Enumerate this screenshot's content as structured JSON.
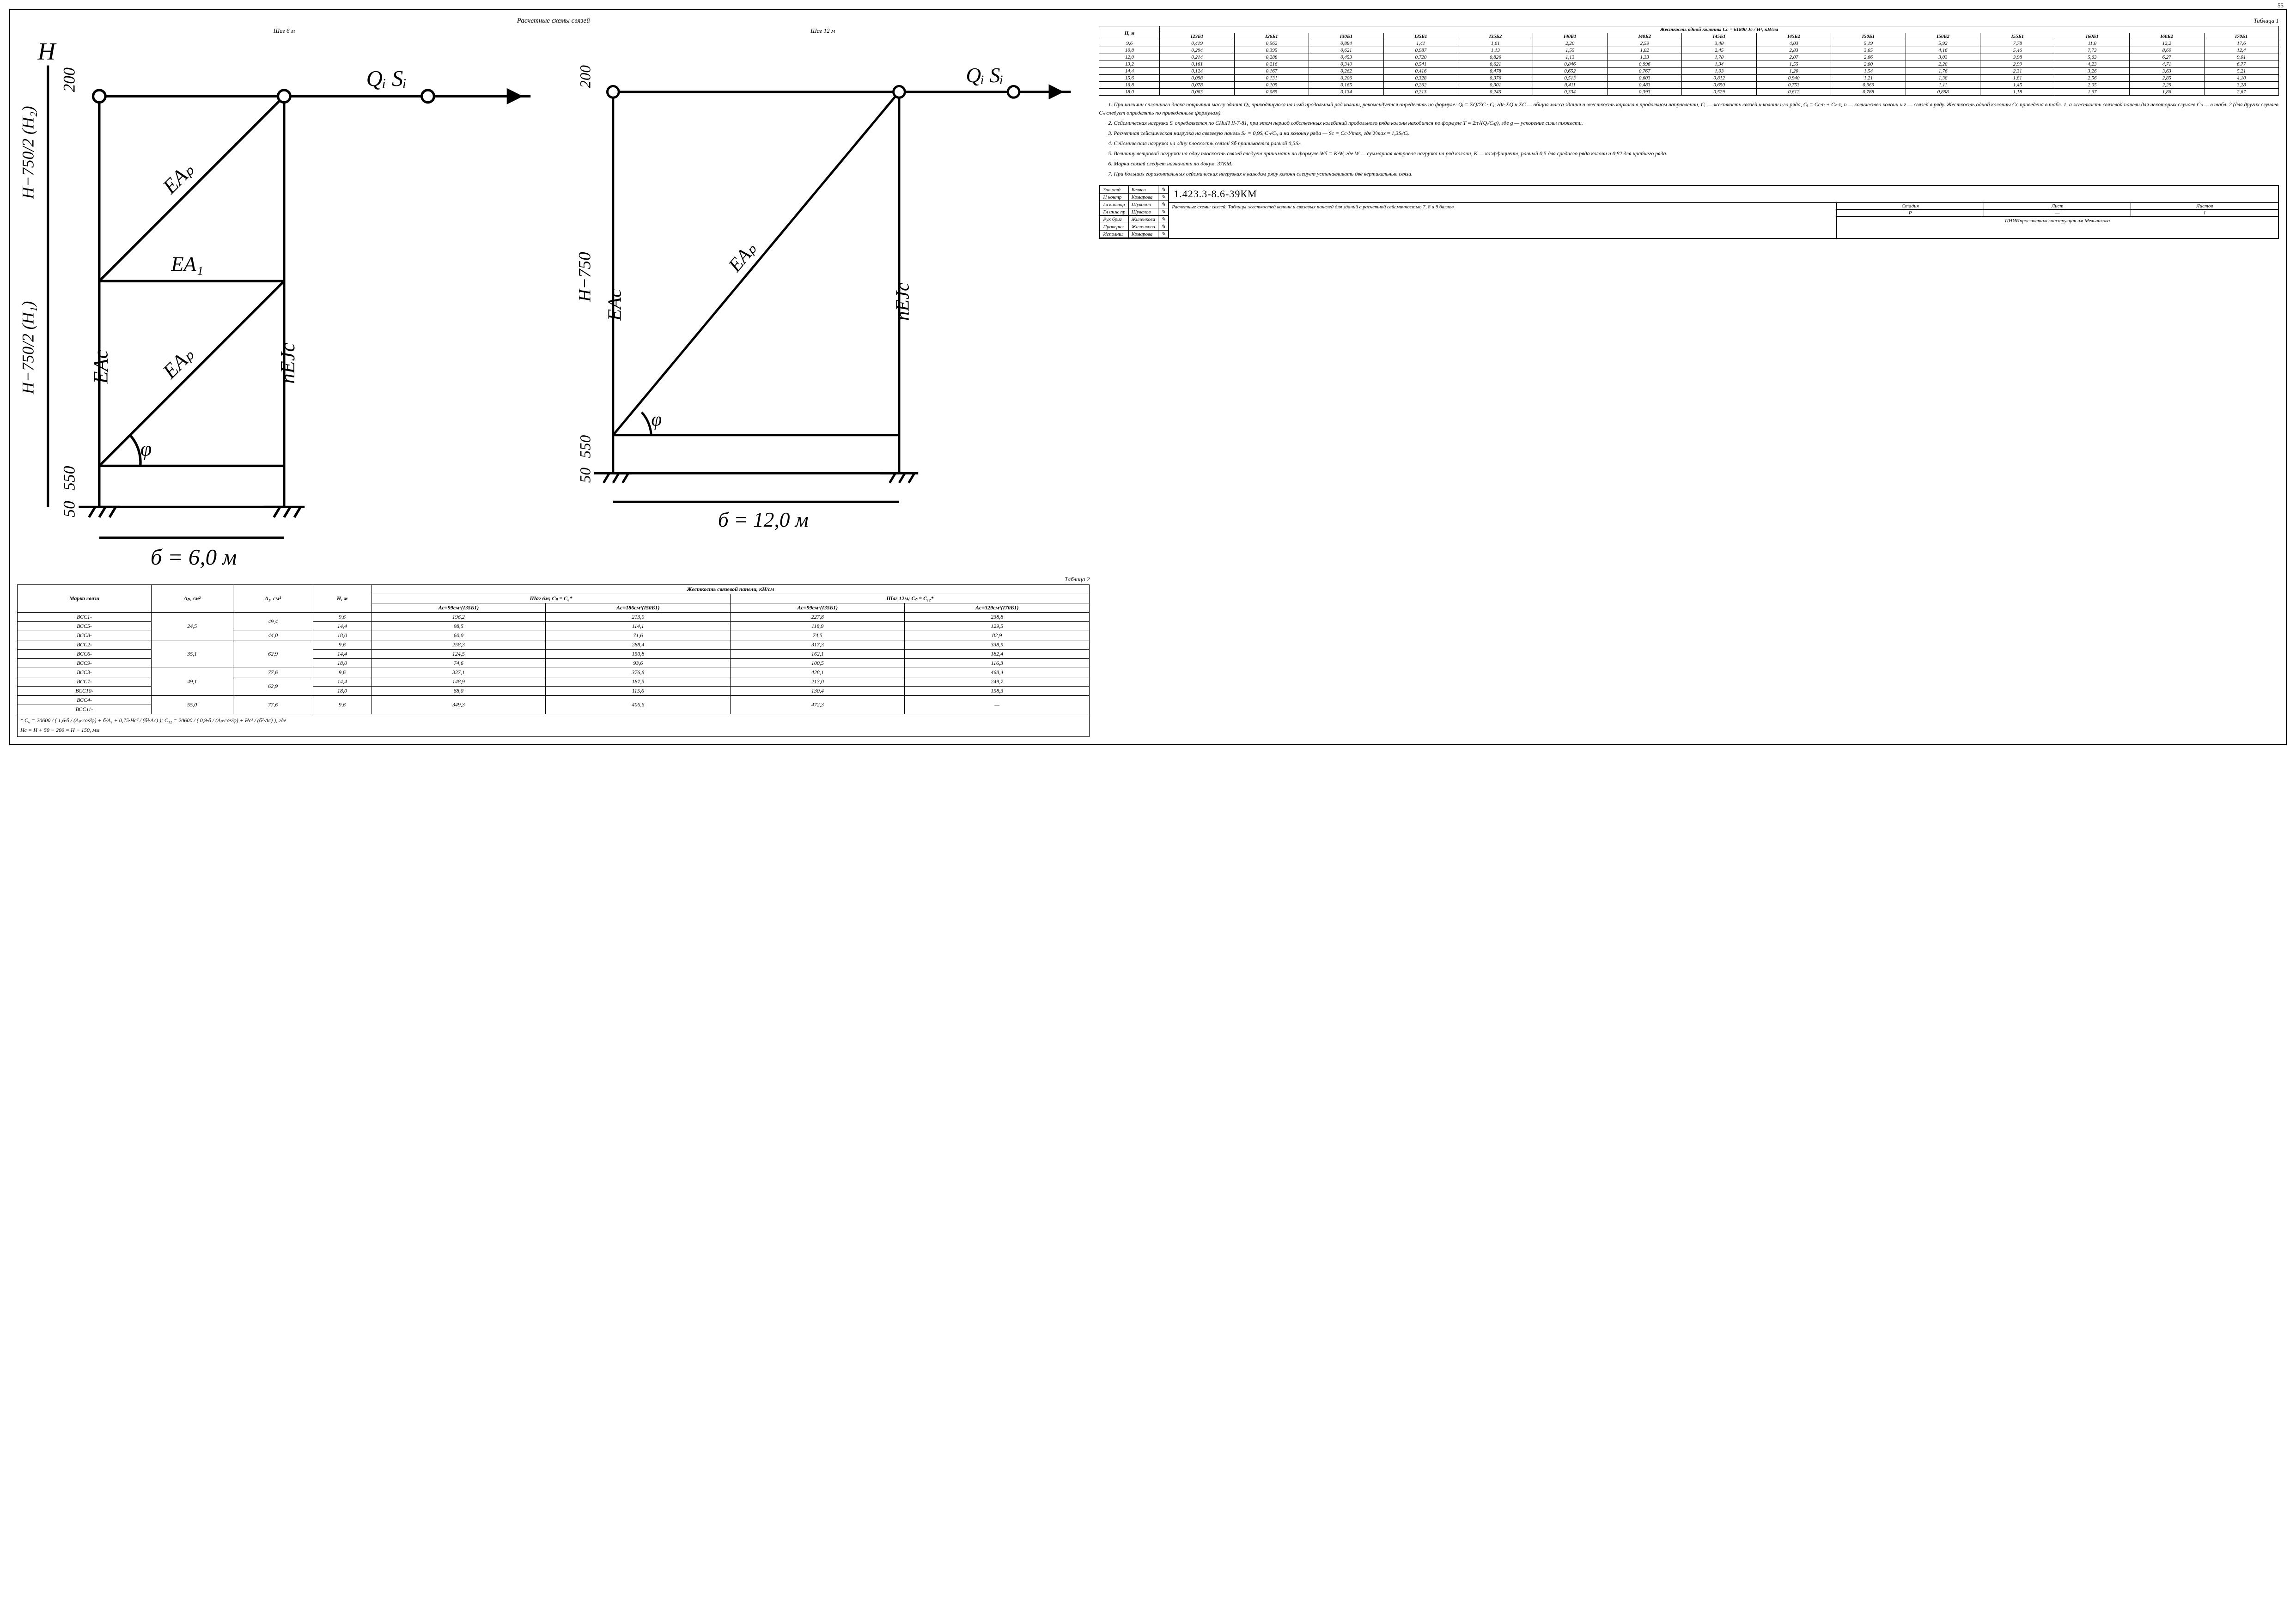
{
  "page_number": "55",
  "diagram": {
    "main_title": "Расчетные схемы связей",
    "sub_left": "Шаг 6 м",
    "sub_right": "Шаг 12 м",
    "labels": {
      "H": "H",
      "Qi": "Qᵢ",
      "Si": "Sᵢ",
      "EAp": "EAₚ",
      "EA1": "EA₁",
      "EAc": "EAc",
      "nEJc": "nEJc",
      "phi": "φ",
      "dim200": "200",
      "dim550": "550",
      "dim50": "50",
      "Hm750_2_H2": "H−750/2 (H₂)",
      "Hm750_2_H1": "H−750/2 (H₁)",
      "Hm750": "H−750",
      "b6": "б = 6,0 м",
      "b12": "б = 12,0 м"
    }
  },
  "table1": {
    "title": "Таблица 1",
    "header_main": "Жесткость одной колонны Cc = 61800 Jc / H³, кН/см",
    "row_header": "H, м",
    "columns": [
      "I23Б1",
      "I26Б1",
      "I30Б1",
      "I35Б1",
      "I35Б2",
      "I40Б1",
      "I40Б2",
      "I45Б1",
      "I45Б2",
      "I50Б1",
      "I50Б2",
      "I55Б1",
      "I60Б1",
      "I60Б2",
      "I70Б1"
    ],
    "rows": [
      {
        "h": "9,6",
        "v": [
          "0,419",
          "0,562",
          "0,884",
          "1,41",
          "1,61",
          "2,20",
          "2,59",
          "3,48",
          "4,03",
          "5,19",
          "5,92",
          "7,78",
          "11,0",
          "12,2",
          "17,6"
        ]
      },
      {
        "h": "10,8",
        "v": [
          "0,294",
          "0,395",
          "0,621",
          "0,987",
          "1,13",
          "1,55",
          "1,82",
          "2,45",
          "2,83",
          "3,65",
          "4,16",
          "5,46",
          "7,73",
          "8,60",
          "12,4"
        ]
      },
      {
        "h": "12,0",
        "v": [
          "0,214",
          "0,288",
          "0,453",
          "0,720",
          "0,826",
          "1,13",
          "1,33",
          "1,78",
          "2,07",
          "2,66",
          "3,03",
          "3,98",
          "5,63",
          "6,27",
          "9,01"
        ]
      },
      {
        "h": "13,2",
        "v": [
          "0,161",
          "0,216",
          "0,340",
          "0,541",
          "0,621",
          "0,846",
          "0,996",
          "1,34",
          "1,55",
          "2,00",
          "2,28",
          "2,99",
          "4,23",
          "4,71",
          "6,77"
        ]
      },
      {
        "h": "14,4",
        "v": [
          "0,124",
          "0,167",
          "0,262",
          "0,416",
          "0,478",
          "0,652",
          "0,767",
          "1,03",
          "1,20",
          "1,54",
          "1,76",
          "2,31",
          "3,26",
          "3,63",
          "5,21"
        ]
      },
      {
        "h": "15,6",
        "v": [
          "0,098",
          "0,131",
          "0,206",
          "0,328",
          "0,376",
          "0,513",
          "0,603",
          "0,812",
          "0,940",
          "1,21",
          "1,38",
          "1,81",
          "2,56",
          "2,85",
          "4,10"
        ]
      },
      {
        "h": "16,8",
        "v": [
          "0,078",
          "0,105",
          "0,165",
          "0,262",
          "0,301",
          "0,411",
          "0,483",
          "0,650",
          "0,753",
          "0,969",
          "1,11",
          "1,45",
          "2,05",
          "2,29",
          "3,28"
        ]
      },
      {
        "h": "18,0",
        "v": [
          "0,063",
          "0,085",
          "0,134",
          "0,213",
          "0,245",
          "0,334",
          "0,393",
          "0,529",
          "0,612",
          "0,788",
          "0,898",
          "1,18",
          "1,67",
          "1,86",
          "2,67"
        ]
      }
    ]
  },
  "table2": {
    "title": "Таблица 2",
    "headers": {
      "marka": "Марка связи",
      "Ap": "Aₚ, см²",
      "A1": "A₁, см²",
      "H": "H, м",
      "zhest": "Жесткость связевой панели, кН/см",
      "shag6": "Шаг 6м; Cₙ = C₆*",
      "shag12": "Шаг 12м; Cₙ = C₁₂*",
      "ac99": "Ac=99см²(I35Б1)",
      "ac186": "Ac=186см²(I50Б1)",
      "ac99b": "Ac=99см²(I35Б1)",
      "ac329": "Ac=329см²(I70Б1)"
    },
    "rows": [
      {
        "marka": "ВСС1-",
        "ap": "24,5",
        "a1": "49,4",
        "h": "9,6",
        "c": [
          "196,2",
          "213,0",
          "227,8",
          "238,8"
        ]
      },
      {
        "marka": "ВСС5-",
        "ap": "",
        "a1": "",
        "h": "14,4",
        "c": [
          "98,5",
          "114,1",
          "118,9",
          "129,5"
        ]
      },
      {
        "marka": "ВСС8-",
        "ap": "",
        "a1": "44,0",
        "h": "18,0",
        "c": [
          "60,0",
          "71,6",
          "74,5",
          "82,9"
        ]
      },
      {
        "marka": "ВСС2-",
        "ap": "35,1",
        "a1": "62,9",
        "h": "9,6",
        "c": [
          "258,3",
          "288,4",
          "317,3",
          "338,9"
        ]
      },
      {
        "marka": "ВСС6-",
        "ap": "",
        "a1": "",
        "h": "14,4",
        "c": [
          "124,5",
          "150,8",
          "162,1",
          "182,4"
        ]
      },
      {
        "marka": "ВСС9-",
        "ap": "",
        "a1": "",
        "h": "18,0",
        "c": [
          "74,6",
          "93,6",
          "100,5",
          "116,3"
        ]
      },
      {
        "marka": "ВСС3-",
        "ap": "49,1",
        "a1": "77,6",
        "h": "9,6",
        "c": [
          "327,1",
          "376,8",
          "428,1",
          "468,4"
        ]
      },
      {
        "marka": "ВСС7-",
        "ap": "",
        "a1": "62,9",
        "h": "14,4",
        "c": [
          "148,9",
          "187,5",
          "213,0",
          "249,7"
        ]
      },
      {
        "marka": "ВСС10-",
        "ap": "",
        "a1": "",
        "h": "18,0",
        "c": [
          "88,0",
          "115,6",
          "130,4",
          "158,3"
        ]
      },
      {
        "marka": "ВСС4-",
        "ap": "55,0",
        "a1": "77,6",
        "h": "9,6",
        "c": [
          "349,3",
          "406,6",
          "472,3",
          "—"
        ]
      },
      {
        "marka": "ВСС11-",
        "ap": "",
        "a1": "",
        "h": "",
        "c": [
          "",
          "",
          "",
          ""
        ]
      }
    ],
    "formula1": "* C₆ = 20600 / ( 1,6·б / (Aₚ·cos³φ) + б/A₁ + 0,75·Hc³ / (б²·Ac) ); C₁₂ = 20600 / ( 0,9·б / (Aₚ·cos³φ) + Hc³ / (б²·Ac) ), где",
    "formula2": "Hc = H + 50 − 200 = H − 150, мм"
  },
  "notes": {
    "p1": "1. При наличии сплошного диска покрытия массу здания Qᵢ, приходящуюся на i-ый продольный ряд колонн, рекомендуется определять по формуле: Qᵢ = ΣQ/ΣC · Cᵢ, где ΣQ и ΣC — общая масса здания и жесткость каркаса в продольном направлении, Cᵢ — жесткость связей и колонн i-го ряда, Cᵢ = Cc·n + Cₙ·z; n — количество колонн и z — связей в ряду. Жесткость одной колонны Cc приведена в табл. 1, а жесткость связевой панели для некоторых случаев Cₙ — в табл. 2 (для других случаев Cₙ следует определять по приведенным формулам).",
    "p2": "2. Сейсмическая нагрузка Sᵢ определяется по СНиП II-7-81, при этом период собственных колебаний продольного ряда колонн находится по формуле T = 2π√(Qᵢ/Cᵢg), где g — ускорение силы тяжести.",
    "p3": "3. Расчетная сейсмическая нагрузка на связевую панель Sₙ = 0,9Sᵢ·Cₙ/Cᵢ, а на колонну ряда — Sc = Cc·Уmax, где Уmax ≈ 1,3Sᵢ/Cᵢ.",
    "p4": "4. Сейсмическая нагрузка на одну плоскость связей Sб принимается равной 0,5Sₙ.",
    "p5": "5. Величину ветровой нагрузки на одну плоскость связей следует принимать по формуле Wб = K·W, где W — суммарная ветровая нагрузка на ряд колонн, K — коэффициент, равный 0,5 для среднего ряда колонн и 0,82 для крайнего ряда.",
    "p6": "6. Марки связей следует назначать по докум. 37КМ.",
    "p7": "7. При больших горизонтальных сейсмических нагрузках в каждом ряду колонн следует устанавливать две вертикальные связи."
  },
  "titleblock": {
    "roles": [
      [
        "Зав отд",
        "Беляев"
      ],
      [
        "Н контр",
        "Комарова"
      ],
      [
        "Гл констр",
        "Шувалов"
      ],
      [
        "Гл инж пр",
        "Шувалов"
      ],
      [
        "Рук бриг",
        "Жиленкова"
      ],
      [
        "Проверил",
        "Жиленкова"
      ],
      [
        "Исполнил",
        "Комарова"
      ]
    ],
    "code": "1.423.3-8.6-39КМ",
    "desc": "Расчетные схемы связей. Таблицы жесткостей колонн и связевых панелей для зданий с расчетной сейсмичностью 7, 8 и 9 баллов",
    "stadia_h": "Стадия",
    "list_h": "Лист",
    "listov_h": "Листов",
    "stadia": "Р",
    "list": "—",
    "listov": "1",
    "org": "ЦНИИпроектстальконструкция им Мельникова"
  }
}
